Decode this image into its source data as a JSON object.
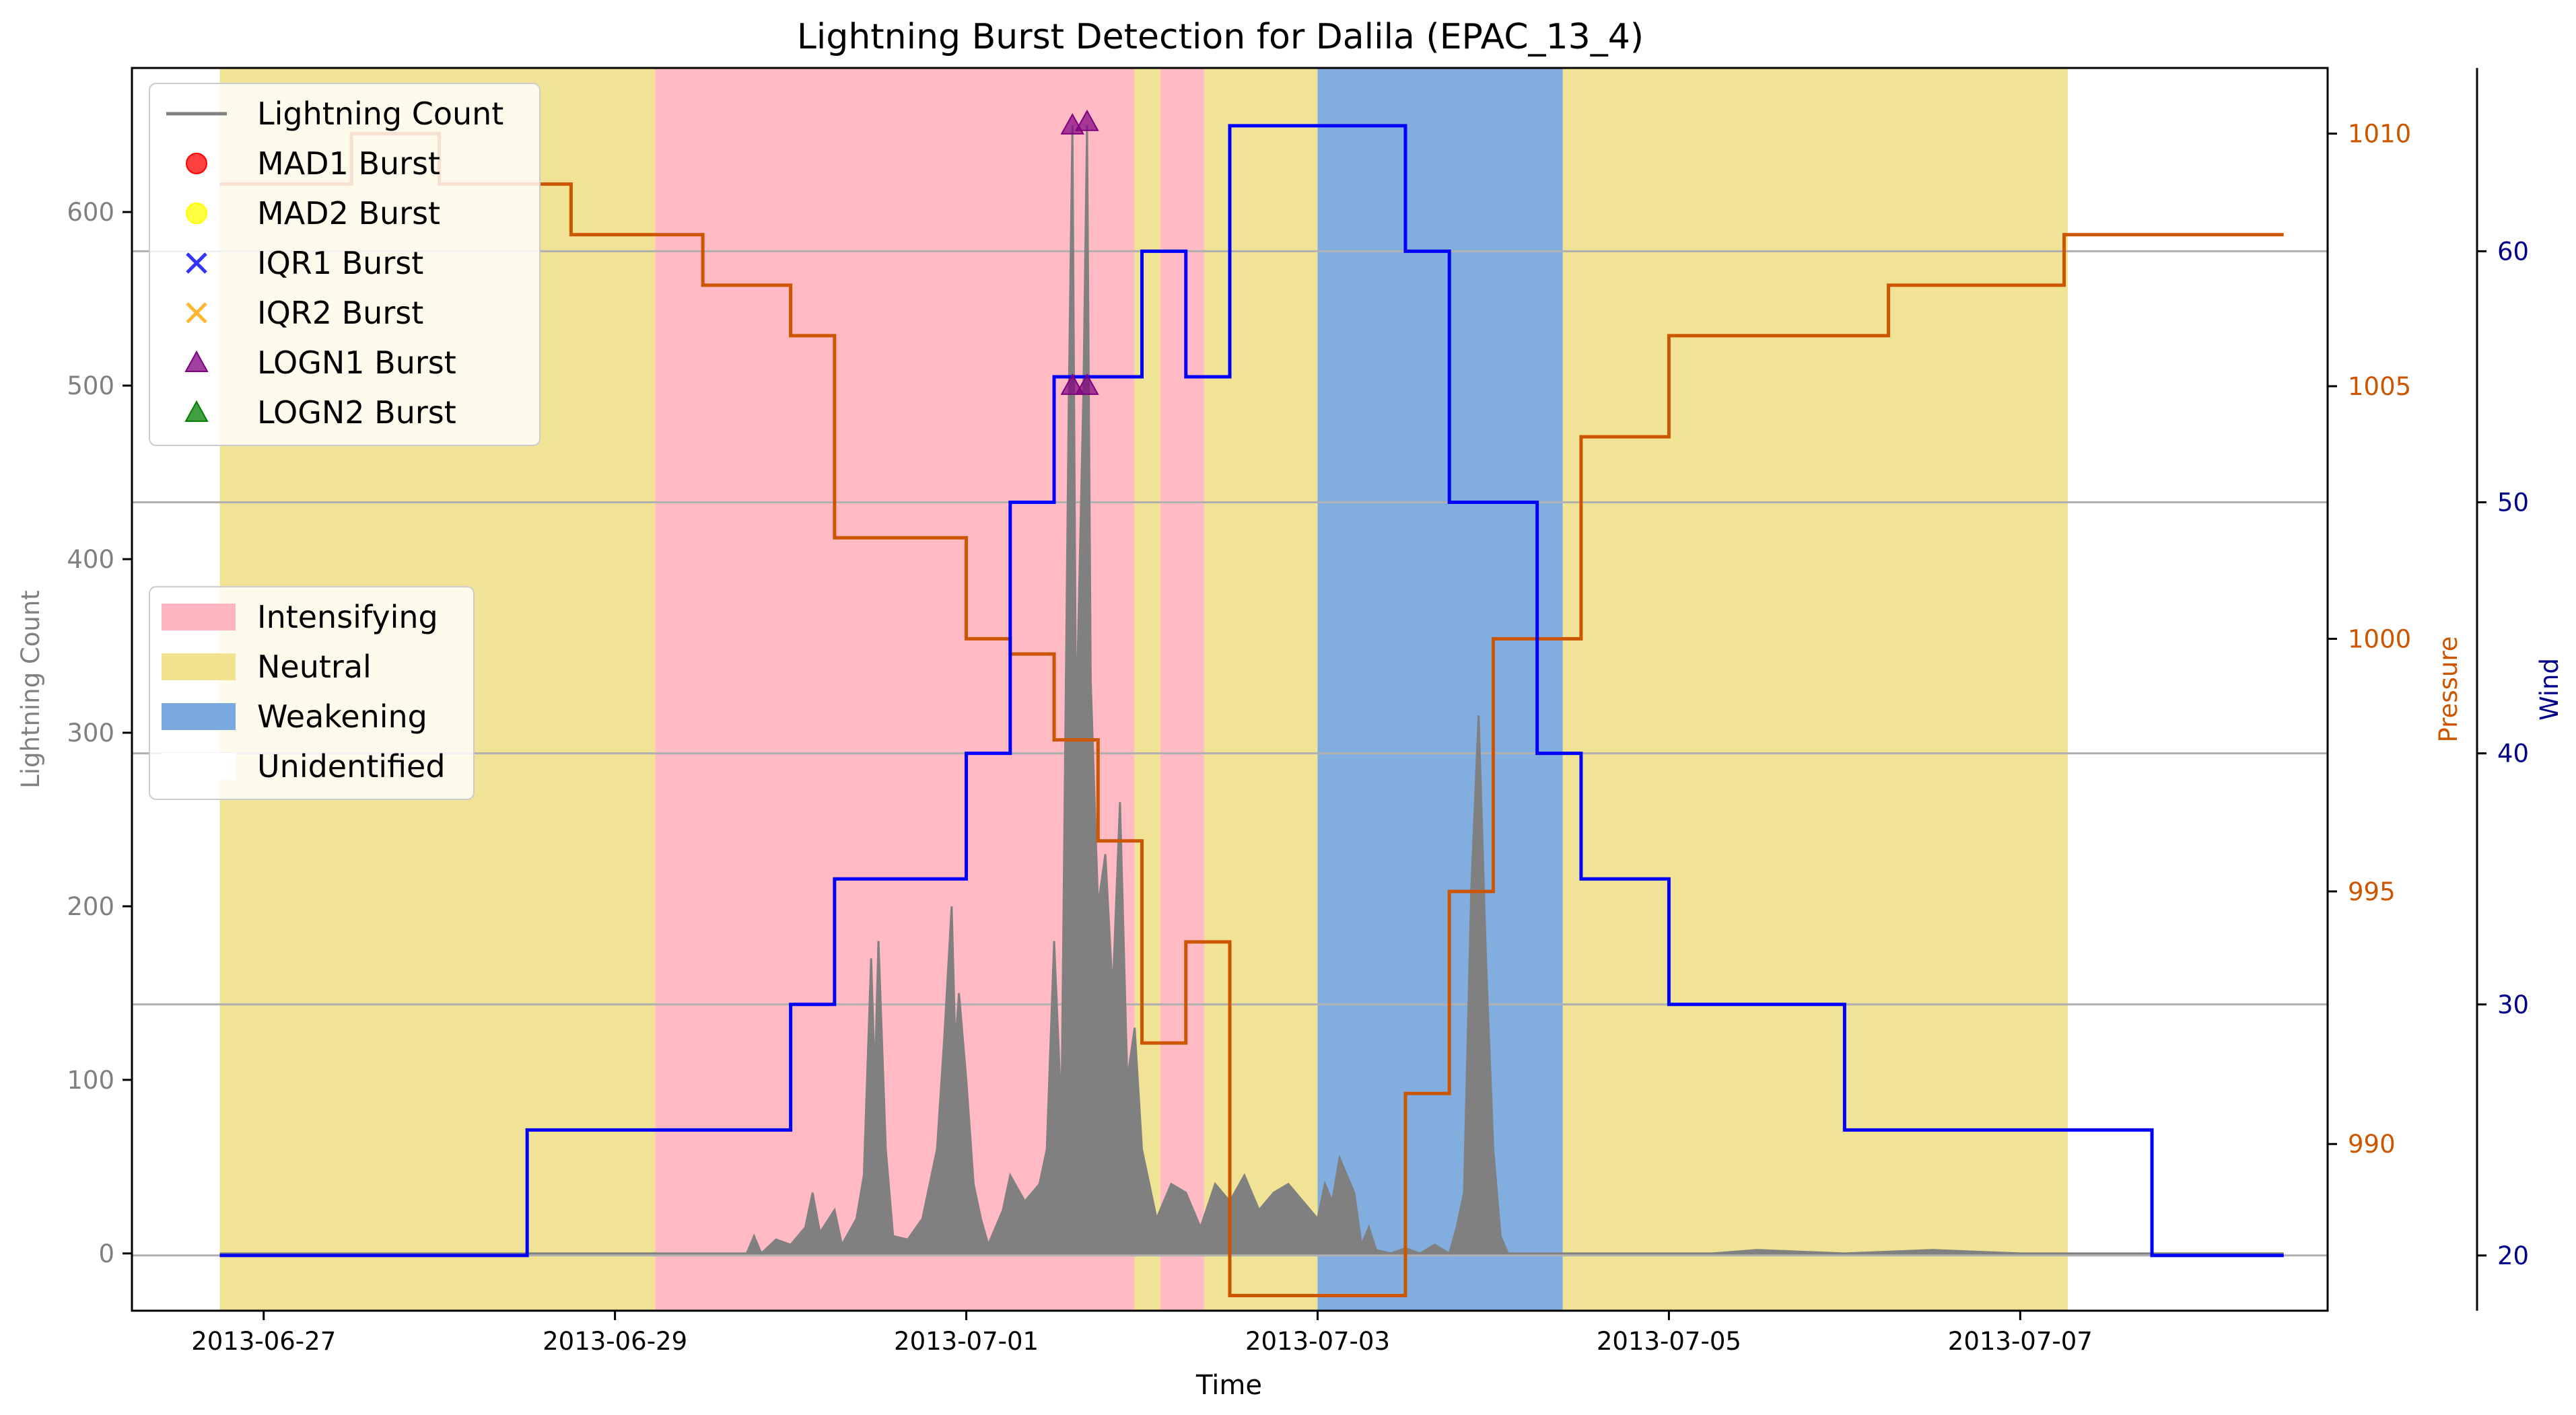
{
  "chart_data": {
    "type": "line",
    "title": "Lightning Burst Detection for Dalila (EPAC_13_4)",
    "xlabel": "Time",
    "x_range": [
      "2013-06-26T06:00",
      "2013-07-08T18:00"
    ],
    "x_ticks": [
      "2013-06-27",
      "2013-06-29",
      "2013-07-01",
      "2013-07-03",
      "2013-07-05",
      "2013-07-07"
    ],
    "y_axes": [
      {
        "id": "count",
        "label": "Lightning Count",
        "range": [
          -33,
          683
        ],
        "ticks": [
          0,
          100,
          200,
          300,
          400,
          500,
          600
        ],
        "color": "#808080",
        "side": "left"
      },
      {
        "id": "pressure",
        "label": "Pressure",
        "range": [
          986.7,
          1011.3
        ],
        "ticks": [
          990,
          995,
          1000,
          1005,
          1010
        ],
        "color": "#cc5500",
        "side": "right"
      },
      {
        "id": "wind",
        "label": "Wind",
        "range": [
          17.8,
          67.3
        ],
        "ticks": [
          20,
          30,
          40,
          50,
          60
        ],
        "color": "#00008b",
        "side": "right-outer"
      }
    ],
    "grid": "horizontal lines at wind ticks",
    "phases": [
      {
        "label": "Neutral",
        "start": "2013-06-26T18:00",
        "end": "2013-06-29T05:30"
      },
      {
        "label": "Intensifying",
        "start": "2013-06-29T05:30",
        "end": "2013-07-01T23:00"
      },
      {
        "label": "Neutral",
        "start": "2013-07-01T23:00",
        "end": "2013-07-02T02:30"
      },
      {
        "label": "Intensifying",
        "start": "2013-07-02T02:30",
        "end": "2013-07-02T08:30"
      },
      {
        "label": "Neutral",
        "start": "2013-07-02T08:30",
        "end": "2013-07-03T00:00"
      },
      {
        "label": "Weakening",
        "start": "2013-07-03T00:00",
        "end": "2013-07-04T09:30"
      },
      {
        "label": "Neutral",
        "start": "2013-07-04T09:30",
        "end": "2013-07-07T06:30"
      }
    ],
    "series": [
      {
        "name": "Lightning Count",
        "axis": "count",
        "color": "#808080",
        "kind": "area",
        "points": [
          [
            "2013-06-26T18:00",
            0
          ],
          [
            "2013-06-29T06:00",
            0
          ],
          [
            "2013-06-29T18:00",
            0
          ],
          [
            "2013-06-29T19:00",
            10
          ],
          [
            "2013-06-29T20:00",
            0
          ],
          [
            "2013-06-29T22:00",
            8
          ],
          [
            "2013-06-30T00:00",
            5
          ],
          [
            "2013-06-30T02:00",
            15
          ],
          [
            "2013-06-30T03:00",
            35
          ],
          [
            "2013-06-30T04:00",
            12
          ],
          [
            "2013-06-30T06:00",
            25
          ],
          [
            "2013-06-30T07:00",
            5
          ],
          [
            "2013-06-30T09:00",
            20
          ],
          [
            "2013-06-30T10:00",
            45
          ],
          [
            "2013-06-30T11:00",
            170
          ],
          [
            "2013-06-30T11:30",
            100
          ],
          [
            "2013-06-30T12:00",
            180
          ],
          [
            "2013-06-30T13:00",
            60
          ],
          [
            "2013-06-30T14:00",
            10
          ],
          [
            "2013-06-30T16:00",
            8
          ],
          [
            "2013-06-30T18:00",
            20
          ],
          [
            "2013-06-30T20:00",
            60
          ],
          [
            "2013-06-30T21:00",
            125
          ],
          [
            "2013-06-30T22:00",
            200
          ],
          [
            "2013-06-30T22:30",
            120
          ],
          [
            "2013-06-30T23:00",
            150
          ],
          [
            "2013-07-01T00:00",
            100
          ],
          [
            "2013-07-01T01:00",
            40
          ],
          [
            "2013-07-01T02:00",
            20
          ],
          [
            "2013-07-01T03:00",
            5
          ],
          [
            "2013-07-01T05:00",
            25
          ],
          [
            "2013-07-01T06:00",
            45
          ],
          [
            "2013-07-01T08:00",
            30
          ],
          [
            "2013-07-01T10:00",
            40
          ],
          [
            "2013-07-01T11:00",
            60
          ],
          [
            "2013-07-01T12:00",
            180
          ],
          [
            "2013-07-01T13:00",
            80
          ],
          [
            "2013-07-01T14:00",
            490
          ],
          [
            "2013-07-01T14:30",
            650
          ],
          [
            "2013-07-01T15:00",
            300
          ],
          [
            "2013-07-01T16:00",
            495
          ],
          [
            "2013-07-01T16:30",
            650
          ],
          [
            "2013-07-01T17:00",
            330
          ],
          [
            "2013-07-01T18:00",
            200
          ],
          [
            "2013-07-01T19:00",
            230
          ],
          [
            "2013-07-01T20:00",
            150
          ],
          [
            "2013-07-01T21:00",
            260
          ],
          [
            "2013-07-01T22:00",
            100
          ],
          [
            "2013-07-01T23:00",
            130
          ],
          [
            "2013-07-02T00:00",
            60
          ],
          [
            "2013-07-02T02:00",
            20
          ],
          [
            "2013-07-02T04:00",
            40
          ],
          [
            "2013-07-02T06:00",
            35
          ],
          [
            "2013-07-02T08:00",
            15
          ],
          [
            "2013-07-02T10:00",
            40
          ],
          [
            "2013-07-02T12:00",
            30
          ],
          [
            "2013-07-02T14:00",
            45
          ],
          [
            "2013-07-02T16:00",
            25
          ],
          [
            "2013-07-02T18:00",
            35
          ],
          [
            "2013-07-02T20:00",
            40
          ],
          [
            "2013-07-02T22:00",
            30
          ],
          [
            "2013-07-03T00:00",
            20
          ],
          [
            "2013-07-03T01:00",
            40
          ],
          [
            "2013-07-03T02:00",
            30
          ],
          [
            "2013-07-03T03:00",
            55
          ],
          [
            "2013-07-03T05:00",
            35
          ],
          [
            "2013-07-03T06:00",
            5
          ],
          [
            "2013-07-03T07:00",
            15
          ],
          [
            "2013-07-03T08:00",
            2
          ],
          [
            "2013-07-03T10:00",
            0
          ],
          [
            "2013-07-03T12:00",
            3
          ],
          [
            "2013-07-03T14:00",
            0
          ],
          [
            "2013-07-03T16:00",
            5
          ],
          [
            "2013-07-03T18:00",
            0
          ],
          [
            "2013-07-03T19:00",
            15
          ],
          [
            "2013-07-03T20:00",
            35
          ],
          [
            "2013-07-03T21:00",
            210
          ],
          [
            "2013-07-03T22:00",
            310
          ],
          [
            "2013-07-03T23:00",
            170
          ],
          [
            "2013-07-04T00:00",
            60
          ],
          [
            "2013-07-04T01:00",
            10
          ],
          [
            "2013-07-04T02:00",
            0
          ],
          [
            "2013-07-05T06:00",
            0
          ],
          [
            "2013-07-05T12:00",
            2
          ],
          [
            "2013-07-06T00:00",
            0
          ],
          [
            "2013-07-06T12:00",
            2
          ],
          [
            "2013-07-07T00:00",
            0
          ],
          [
            "2013-07-08T12:00",
            0
          ]
        ]
      },
      {
        "name": "Pressure",
        "axis": "pressure",
        "color": "#cc5500",
        "kind": "step",
        "points": [
          [
            "2013-06-26T18:00",
            1009
          ],
          [
            "2013-06-27T12:00",
            1010
          ],
          [
            "2013-06-28T00:00",
            1009
          ],
          [
            "2013-06-28T18:00",
            1008
          ],
          [
            "2013-06-29T12:00",
            1007
          ],
          [
            "2013-06-30T00:00",
            1006
          ],
          [
            "2013-06-30T06:00",
            1002
          ],
          [
            "2013-07-01T00:00",
            1000
          ],
          [
            "2013-07-01T06:00",
            999.7
          ],
          [
            "2013-07-01T12:00",
            998
          ],
          [
            "2013-07-01T18:00",
            996
          ],
          [
            "2013-07-02T00:00",
            992
          ],
          [
            "2013-07-02T06:00",
            994
          ],
          [
            "2013-07-02T12:00",
            987
          ],
          [
            "2013-07-03T06:00",
            987
          ],
          [
            "2013-07-03T12:00",
            991
          ],
          [
            "2013-07-03T18:00",
            995
          ],
          [
            "2013-07-04T00:00",
            1000
          ],
          [
            "2013-07-04T12:00",
            1004
          ],
          [
            "2013-07-05T00:00",
            1006
          ],
          [
            "2013-07-06T06:00",
            1007
          ],
          [
            "2013-07-07T06:00",
            1008
          ],
          [
            "2013-07-08T12:00",
            1008
          ]
        ]
      },
      {
        "name": "Wind",
        "axis": "wind",
        "color": "#0000ff",
        "kind": "step",
        "points": [
          [
            "2013-06-26T18:00",
            20
          ],
          [
            "2013-06-28T12:00",
            25
          ],
          [
            "2013-06-30T00:00",
            30
          ],
          [
            "2013-06-30T06:00",
            35
          ],
          [
            "2013-07-01T00:00",
            40
          ],
          [
            "2013-07-01T06:00",
            50
          ],
          [
            "2013-07-01T12:00",
            55
          ],
          [
            "2013-07-02T00:00",
            60
          ],
          [
            "2013-07-02T06:00",
            55
          ],
          [
            "2013-07-02T12:00",
            65
          ],
          [
            "2013-07-03T12:00",
            60
          ],
          [
            "2013-07-03T18:00",
            50
          ],
          [
            "2013-07-04T06:00",
            40
          ],
          [
            "2013-07-04T12:00",
            35
          ],
          [
            "2013-07-05T00:00",
            30
          ],
          [
            "2013-07-06T00:00",
            25
          ],
          [
            "2013-07-07T18:00",
            20
          ],
          [
            "2013-07-08T12:00",
            20
          ]
        ]
      }
    ],
    "bursts": [
      {
        "type": "LOGN1 Burst",
        "x": "2013-07-01T14:30",
        "y": 650
      },
      {
        "type": "LOGN1 Burst",
        "x": "2013-07-01T16:30",
        "y": 652
      },
      {
        "type": "LOGN1 Burst",
        "x": "2013-07-01T14:30",
        "y": 500
      },
      {
        "type": "LOGN1 Burst",
        "x": "2013-07-01T16:30",
        "y": 500
      }
    ],
    "legend_markers": {
      "location": "upper-left",
      "entries": [
        {
          "label": "Lightning Count",
          "marker": "line",
          "color": "#808080"
        },
        {
          "label": "MAD1 Burst",
          "marker": "circle",
          "color": "#ff0000"
        },
        {
          "label": "MAD2 Burst",
          "marker": "circle",
          "color": "#ffff00"
        },
        {
          "label": "IQR1 Burst",
          "marker": "x",
          "color": "#0000ff"
        },
        {
          "label": "IQR2 Burst",
          "marker": "x",
          "color": "#ffa500"
        },
        {
          "label": "LOGN1 Burst",
          "marker": "triangle",
          "color": "#800080"
        },
        {
          "label": "LOGN2 Burst",
          "marker": "triangle",
          "color": "#008000"
        }
      ]
    },
    "legend_phases": {
      "location": "center-left",
      "entries": [
        {
          "label": "Intensifying",
          "color": "#ffb6c1"
        },
        {
          "label": "Neutral",
          "color": "#f0e28f"
        },
        {
          "label": "Weakening",
          "color": "#7aa9dd"
        },
        {
          "label": "Unidentified",
          "color": "#ffffff"
        }
      ]
    }
  }
}
